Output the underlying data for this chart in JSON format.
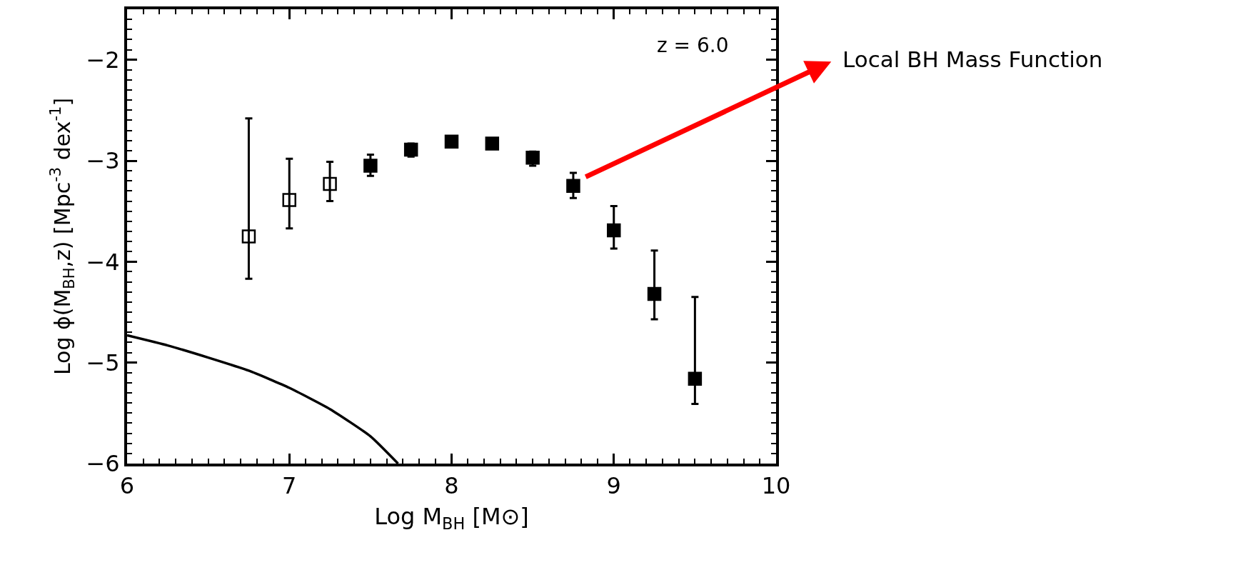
{
  "chart_data": {
    "type": "scatter",
    "xlabel": "Log M$_{BH}$ [M⊙]",
    "ylabel": "Log ϕ(M$_{BH}$,z) [Mpc$^{-3}$ dex$^{-1}$]",
    "annotations": [
      "z = 6.0",
      "Local BH Mass Function"
    ],
    "xlim": [
      6,
      10
    ],
    "ylim": [
      -6,
      -1.5
    ],
    "xticks": [
      6,
      7,
      8,
      9,
      10,
      {
        "value": 6.1,
        "label": null
      },
      {
        "value": 6.2,
        "label": null
      },
      {
        "value": 6.3,
        "label": null
      },
      {
        "value": 6.4,
        "label": null
      },
      {
        "value": 6.5,
        "label": null
      },
      {
        "value": 6.6,
        "label": null
      },
      {
        "value": 6.7,
        "label": null
      },
      {
        "value": 6.8,
        "label": null
      },
      {
        "value": 6.9,
        "label": null
      },
      {
        "value": 7.1,
        "label": null
      },
      {
        "value": 7.2,
        "label": null
      },
      {
        "value": 7.3,
        "label": null
      },
      {
        "value": 7.4,
        "label": null
      },
      {
        "value": 7.5,
        "label": null
      },
      {
        "value": 7.6,
        "label": null
      },
      {
        "value": 7.7,
        "label": null
      },
      {
        "value": 7.8,
        "label": null
      },
      {
        "value": 7.9,
        "label": null
      },
      {
        "value": 8.1,
        "label": null
      },
      {
        "value": 8.2,
        "label": null
      },
      {
        "value": 8.3,
        "label": null
      },
      {
        "value": 8.4,
        "label": null
      },
      {
        "value": 8.5,
        "label": null
      },
      {
        "value": 8.6,
        "label": null
      },
      {
        "value": 8.7,
        "label": null
      },
      {
        "value": 8.8,
        "label": null
      },
      {
        "value": 8.9,
        "label": null
      },
      {
        "value": 9.1,
        "label": null
      },
      {
        "value": 9.2,
        "label": null
      },
      {
        "value": 9.3,
        "label": null
      },
      {
        "value": 9.4,
        "label": null
      },
      {
        "value": 9.5,
        "label": null
      },
      {
        "value": 9.6,
        "label": null
      },
      {
        "value": 9.7,
        "label": null
      },
      {
        "value": 9.8,
        "label": null
      },
      {
        "value": 9.9,
        "label": null
      }
    ],
    "yticks": [
      {
        "value": -6,
        "label": "−6"
      },
      {
        "value": -5,
        "label": "−5"
      },
      {
        "value": -4,
        "label": "−4"
      },
      {
        "value": -3,
        "label": "−3"
      },
      {
        "value": -2,
        "label": "−2"
      },
      {
        "value": -5.9,
        "label": null
      },
      {
        "value": -5.8,
        "label": null
      },
      {
        "value": -5.7,
        "label": null
      },
      {
        "value": -5.6,
        "label": null
      },
      {
        "value": -5.5,
        "label": null
      },
      {
        "value": -5.4,
        "label": null
      },
      {
        "value": -5.3,
        "label": null
      },
      {
        "value": -5.2,
        "label": null
      },
      {
        "value": -5.1,
        "label": null
      },
      {
        "value": -4.9,
        "label": null
      },
      {
        "value": -4.8,
        "label": null
      },
      {
        "value": -4.7,
        "label": null
      },
      {
        "value": -4.6,
        "label": null
      },
      {
        "value": -4.5,
        "label": null
      },
      {
        "value": -4.4,
        "label": null
      },
      {
        "value": -4.3,
        "label": null
      },
      {
        "value": -4.2,
        "label": null
      },
      {
        "value": -4.1,
        "label": null
      },
      {
        "value": -3.9,
        "label": null
      },
      {
        "value": -3.8,
        "label": null
      },
      {
        "value": -3.7,
        "label": null
      },
      {
        "value": -3.6,
        "label": null
      },
      {
        "value": -3.5,
        "label": null
      },
      {
        "value": -3.4,
        "label": null
      },
      {
        "value": -3.3,
        "label": null
      },
      {
        "value": -3.2,
        "label": null
      },
      {
        "value": -3.1,
        "label": null
      },
      {
        "value": -2.9,
        "label": null
      },
      {
        "value": -2.8,
        "label": null
      },
      {
        "value": -2.7,
        "label": null
      },
      {
        "value": -2.6,
        "label": null
      },
      {
        "value": -2.5,
        "label": null
      },
      {
        "value": -2.4,
        "label": null
      },
      {
        "value": -2.3,
        "label": null
      },
      {
        "value": -2.2,
        "label": null
      },
      {
        "value": -2.1,
        "label": null
      },
      {
        "value": -1.9,
        "label": null
      },
      {
        "value": -1.8,
        "label": null
      },
      {
        "value": -1.7,
        "label": null
      },
      {
        "value": -1.6,
        "label": null
      }
    ],
    "series": [
      {
        "marker": "square-open",
        "color": "#000000",
        "x": [
          6.75,
          7.0,
          7.25
        ],
        "values": [
          -3.75,
          -3.39,
          -3.23
        ],
        "errors": [
          [
            -4.17,
            -2.58
          ],
          [
            -3.67,
            -2.98
          ],
          [
            -3.4,
            -3.01
          ]
        ]
      },
      {
        "marker": "square",
        "color": "#000000",
        "x": [
          7.5,
          7.75,
          8.0,
          8.25,
          8.5,
          8.75,
          9.0,
          9.25,
          9.5
        ],
        "values": [
          -3.05,
          -2.89,
          -2.81,
          -2.83,
          -2.97,
          -3.25,
          -3.69,
          -4.32,
          -5.16
        ],
        "errors": [
          [
            -3.15,
            -2.94
          ],
          [
            -2.96,
            -2.83
          ],
          null,
          null,
          [
            -3.05,
            -2.91
          ],
          [
            -3.37,
            -3.12
          ],
          [
            -3.87,
            -3.45
          ],
          [
            -4.57,
            -3.89
          ],
          [
            -5.41,
            -4.35
          ]
        ]
      },
      {
        "type": "line",
        "color": "#000000",
        "x": [
          6.0,
          6.25,
          6.5,
          6.75,
          7.0,
          7.25,
          7.5,
          7.67
        ],
        "values": [
          -4.73,
          -4.83,
          -4.95,
          -5.08,
          -5.25,
          -5.46,
          -5.73,
          -6.0
        ]
      }
    ]
  }
}
